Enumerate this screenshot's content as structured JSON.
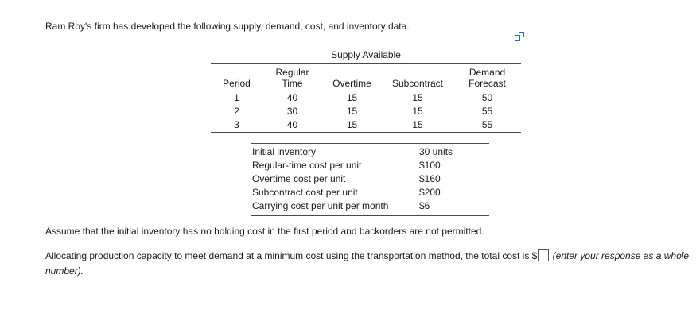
{
  "colors": {
    "icon_blue": "#1a6fc9",
    "text": "#1a1a1a",
    "rule": "#4a4a4a"
  },
  "icons": {
    "top_right": "copy-icon"
  },
  "intro": "Ram Roy's firm has developed the following supply, demand, cost, and inventory data.",
  "supply_table": {
    "title": "Supply Available",
    "columns": [
      {
        "lines": [
          "Period"
        ]
      },
      {
        "lines": [
          "Regular",
          "Time"
        ]
      },
      {
        "lines": [
          "Overtime"
        ]
      },
      {
        "lines": [
          "Subcontract"
        ]
      },
      {
        "lines": [
          "Demand",
          "Forecast"
        ]
      }
    ],
    "rows": [
      {
        "cells": [
          "1",
          "40",
          "15",
          "15",
          "50"
        ]
      },
      {
        "cells": [
          "2",
          "30",
          "15",
          "15",
          "55"
        ]
      },
      {
        "cells": [
          "3",
          "40",
          "15",
          "15",
          "55"
        ]
      }
    ]
  },
  "cost_table": {
    "rows": [
      {
        "label": "Initial inventory",
        "value": "30 units"
      },
      {
        "label": "Regular-time cost per unit",
        "value": "$100"
      },
      {
        "label": "Overtime cost per unit",
        "value": "$160"
      },
      {
        "label": "Subcontract cost per unit",
        "value": "$200"
      },
      {
        "label": "Carrying cost per unit per month",
        "value": "$6"
      }
    ]
  },
  "assumption": "Assume that the initial inventory has no holding cost in the first period and backorders are not permitted.",
  "question": {
    "prefix": "Allocating production capacity to meet demand at a minimum cost using the transportation method, the total cost is $",
    "suffix": "(enter your response as a whole number).",
    "answer_value": ""
  }
}
